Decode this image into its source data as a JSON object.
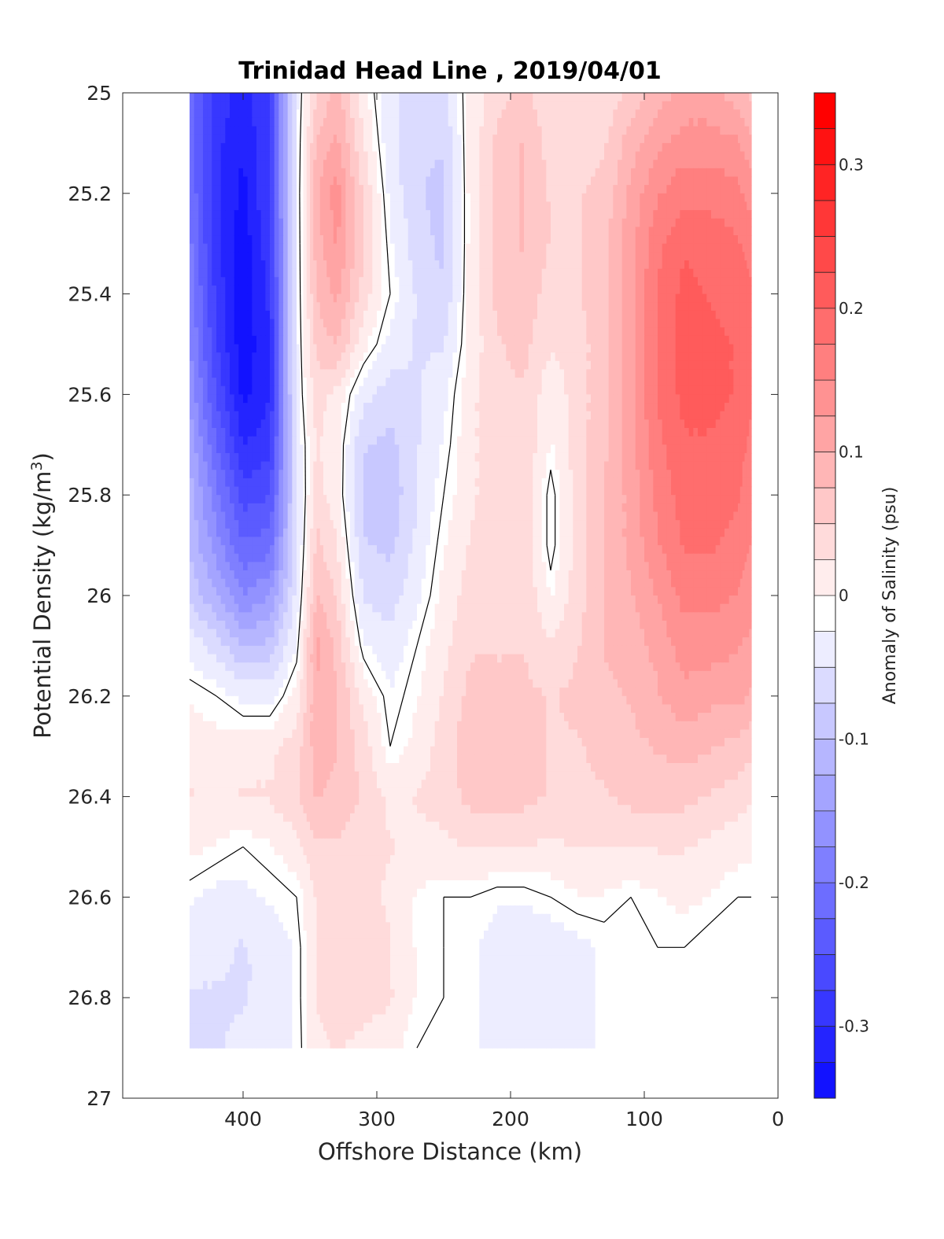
{
  "chart_data": {
    "type": "heatmap",
    "subtype": "filled-contour",
    "title": "Trinidad Head Line , 2019/04/01",
    "xlabel": "Offshore Distance (km)",
    "ylabel_prefix": "Potential Density (kg/m",
    "ylabel_sup": "3",
    "ylabel_suffix": ")",
    "colorbar_label": "Anomaly of Salinity (psu)",
    "x_reversed": true,
    "y_reversed": true,
    "xlim": [
      490,
      0
    ],
    "ylim": [
      25,
      27
    ],
    "xticks": [
      400,
      300,
      200,
      100,
      0
    ],
    "xtick_labels": [
      "400",
      "300",
      "200",
      "100",
      "0"
    ],
    "yticks": [
      25,
      25.2,
      25.4,
      25.6,
      25.8,
      26,
      26.2,
      26.4,
      26.6,
      26.8,
      27
    ],
    "ytick_labels": [
      "25",
      "25.2",
      "25.4",
      "25.6",
      "25.8",
      "26",
      "26.2",
      "26.4",
      "26.6",
      "26.8",
      "27"
    ],
    "clim": [
      -0.35,
      0.35
    ],
    "colorbar_step": 0.025,
    "colorbar_ticks": [
      -0.3,
      -0.2,
      -0.1,
      0,
      0.1,
      0.2,
      0.3
    ],
    "colorbar_tick_labels": [
      "-0.3",
      "-0.2",
      "-0.1",
      "0",
      "0.1",
      "0.2",
      "0.3"
    ],
    "colormap": {
      "negative": "#0000ff",
      "zero": "#ffffff",
      "positive": "#ff0000"
    },
    "zero_contour_color": "#000000",
    "grid": false,
    "x": [
      440,
      420,
      400,
      380,
      360,
      345,
      330,
      310,
      290,
      270,
      250,
      230,
      210,
      190,
      170,
      150,
      130,
      110,
      90,
      70,
      50,
      30,
      20
    ],
    "y": [
      25,
      25.1,
      25.2,
      25.3,
      25.4,
      25.5,
      25.6,
      25.7,
      25.8,
      25.9,
      26,
      26.1,
      26.2,
      26.3,
      26.4,
      26.5,
      26.6,
      26.7,
      26.8,
      26.9
    ],
    "z": [
      [
        -0.2,
        -0.27,
        -0.3,
        -0.26,
        -0.02,
        0.06,
        0.1,
        0.02,
        -0.03,
        -0.05,
        -0.05,
        0.02,
        0.05,
        0.07,
        0.04,
        0.04,
        0.04,
        0.07,
        0.1,
        0.12,
        0.12,
        0.1,
        0.08
      ],
      [
        -0.2,
        -0.28,
        -0.31,
        -0.26,
        -0.02,
        0.09,
        0.12,
        0.04,
        -0.03,
        -0.06,
        -0.06,
        0.02,
        0.07,
        0.09,
        0.05,
        0.05,
        0.06,
        0.1,
        0.13,
        0.15,
        0.15,
        0.14,
        0.12
      ],
      [
        -0.19,
        -0.28,
        -0.32,
        -0.26,
        -0.02,
        0.11,
        0.15,
        0.06,
        -0.02,
        -0.06,
        -0.07,
        0.02,
        0.07,
        0.09,
        0.06,
        0.06,
        0.07,
        0.12,
        0.16,
        0.18,
        0.18,
        0.17,
        0.15
      ],
      [
        -0.18,
        -0.28,
        -0.33,
        -0.27,
        -0.02,
        0.1,
        0.14,
        0.07,
        -0.01,
        -0.05,
        -0.07,
        0.02,
        0.07,
        0.09,
        0.06,
        0.06,
        0.08,
        0.13,
        0.18,
        0.21,
        0.2,
        0.19,
        0.18
      ],
      [
        -0.17,
        -0.27,
        -0.33,
        -0.28,
        -0.02,
        0.09,
        0.12,
        0.05,
        0.0,
        -0.04,
        -0.06,
        0.02,
        0.07,
        0.08,
        0.05,
        0.06,
        0.08,
        0.13,
        0.19,
        0.22,
        0.21,
        0.2,
        0.19
      ],
      [
        -0.16,
        -0.26,
        -0.33,
        -0.29,
        -0.02,
        0.07,
        0.09,
        0.02,
        -0.02,
        -0.04,
        -0.04,
        0.02,
        0.06,
        0.07,
        0.04,
        0.05,
        0.08,
        0.13,
        0.19,
        0.22,
        0.22,
        0.21,
        0.2
      ],
      [
        -0.14,
        -0.24,
        -0.32,
        -0.29,
        -0.02,
        0.05,
        0.03,
        -0.03,
        -0.05,
        -0.04,
        -0.02,
        0.03,
        0.06,
        0.06,
        0.02,
        0.05,
        0.08,
        0.13,
        0.19,
        0.22,
        0.22,
        0.21,
        0.19
      ],
      [
        -0.12,
        -0.21,
        -0.29,
        -0.27,
        -0.03,
        0.04,
        0.02,
        -0.06,
        -0.07,
        -0.04,
        -0.01,
        0.03,
        0.06,
        0.06,
        0.01,
        0.05,
        0.08,
        0.13,
        0.18,
        0.21,
        0.21,
        0.2,
        0.18
      ],
      [
        -0.1,
        -0.18,
        -0.25,
        -0.24,
        -0.04,
        0.05,
        0.02,
        -0.07,
        -0.08,
        -0.04,
        0.0,
        0.03,
        0.06,
        0.06,
        -0.01,
        0.05,
        0.09,
        0.12,
        0.17,
        0.2,
        0.2,
        0.19,
        0.17
      ],
      [
        -0.09,
        -0.15,
        -0.21,
        -0.2,
        -0.04,
        0.07,
        0.04,
        -0.06,
        -0.07,
        -0.03,
        0.01,
        0.04,
        0.06,
        0.06,
        -0.01,
        0.05,
        0.09,
        0.12,
        0.16,
        0.19,
        0.19,
        0.18,
        0.16
      ],
      [
        -0.07,
        -0.11,
        -0.16,
        -0.14,
        -0.03,
        0.09,
        0.06,
        -0.04,
        -0.05,
        -0.02,
        0.02,
        0.05,
        0.06,
        0.06,
        0.01,
        0.05,
        0.09,
        0.11,
        0.14,
        0.17,
        0.17,
        0.16,
        0.15
      ],
      [
        -0.02,
        -0.05,
        -0.09,
        -0.08,
        -0.01,
        0.12,
        0.08,
        -0.01,
        -0.03,
        0.0,
        0.03,
        0.06,
        0.06,
        0.06,
        0.04,
        0.06,
        0.09,
        0.1,
        0.12,
        0.15,
        0.15,
        0.14,
        0.13
      ],
      [
        0.01,
        0.0,
        -0.02,
        -0.02,
        0.02,
        0.11,
        0.09,
        0.03,
        -0.01,
        0.01,
        0.04,
        0.07,
        0.07,
        0.07,
        0.06,
        0.07,
        0.08,
        0.09,
        0.11,
        0.13,
        0.12,
        0.12,
        0.11
      ],
      [
        0.03,
        0.02,
        0.03,
        0.03,
        0.05,
        0.1,
        0.09,
        0.05,
        0.0,
        0.02,
        0.05,
        0.08,
        0.08,
        0.08,
        0.06,
        0.06,
        0.07,
        0.08,
        0.09,
        0.1,
        0.09,
        0.08,
        0.07
      ],
      [
        0.04,
        0.03,
        0.04,
        0.04,
        0.06,
        0.09,
        0.08,
        0.06,
        0.03,
        0.04,
        0.05,
        0.07,
        0.07,
        0.07,
        0.06,
        0.06,
        0.06,
        0.07,
        0.07,
        0.07,
        0.06,
        0.05,
        0.04
      ],
      [
        0.02,
        0.01,
        0.0,
        0.01,
        0.03,
        0.06,
        0.06,
        0.05,
        0.04,
        0.03,
        0.03,
        0.04,
        0.04,
        0.04,
        0.03,
        0.04,
        0.04,
        0.04,
        0.04,
        0.04,
        0.03,
        0.02,
        0.02
      ],
      [
        -0.01,
        -0.02,
        -0.02,
        -0.01,
        0.0,
        0.04,
        0.05,
        0.05,
        0.03,
        0.01,
        0.0,
        0.0,
        -0.01,
        -0.01,
        0.0,
        0.01,
        0.01,
        0.0,
        0.01,
        0.02,
        0.01,
        0.0,
        0.0
      ],
      [
        -0.03,
        -0.03,
        -0.04,
        -0.03,
        -0.01,
        0.04,
        0.06,
        0.06,
        0.04,
        0.01,
        0.0,
        -0.01,
        -0.02,
        -0.03,
        -0.03,
        -0.02,
        -0.01,
        -0.01,
        0.0,
        0.0,
        -0.01,
        -0.01,
        -0.01
      ],
      [
        -0.04,
        -0.04,
        -0.04,
        -0.03,
        -0.01,
        0.04,
        0.05,
        0.05,
        0.04,
        0.01,
        0.0,
        -0.01,
        -0.02,
        -0.03,
        -0.03,
        -0.02,
        -0.01,
        -0.01,
        0.0,
        0.0,
        -0.01,
        -0.01,
        -0.01
      ],
      [
        -0.04,
        -0.04,
        -0.03,
        -0.03,
        -0.01,
        0.03,
        0.04,
        0.03,
        0.02,
        0.0,
        -0.01,
        -0.01,
        -0.02,
        -0.02,
        -0.02,
        -0.02,
        -0.01,
        -0.01,
        0.0,
        0.0,
        -0.01,
        -0.01,
        -0.01
      ]
    ]
  }
}
